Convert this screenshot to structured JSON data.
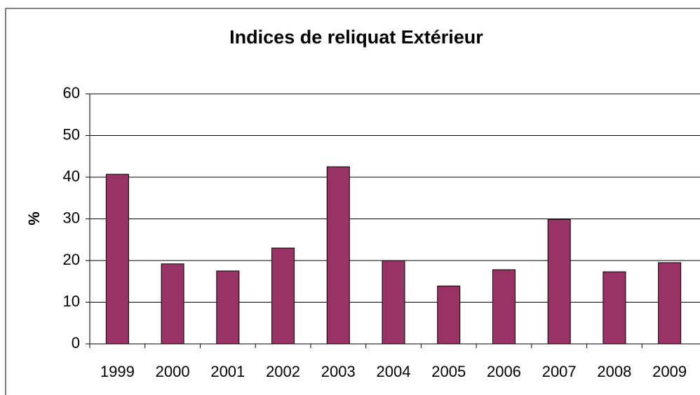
{
  "chart_data": {
    "type": "bar",
    "title": "Indices de reliquat Extérieur",
    "y_label": "%",
    "categories": [
      "1999",
      "2000",
      "2001",
      "2002",
      "2003",
      "2004",
      "2005",
      "2006",
      "2007",
      "2008",
      "2009"
    ],
    "values": [
      40.7,
      19.2,
      17.5,
      23.0,
      42.5,
      20.0,
      13.9,
      17.8,
      29.9,
      17.3,
      19.5
    ],
    "color": "#993366",
    "ylim": [
      0,
      60
    ],
    "yticks": [
      0,
      10,
      20,
      30,
      40,
      50,
      60
    ],
    "grid": true
  }
}
